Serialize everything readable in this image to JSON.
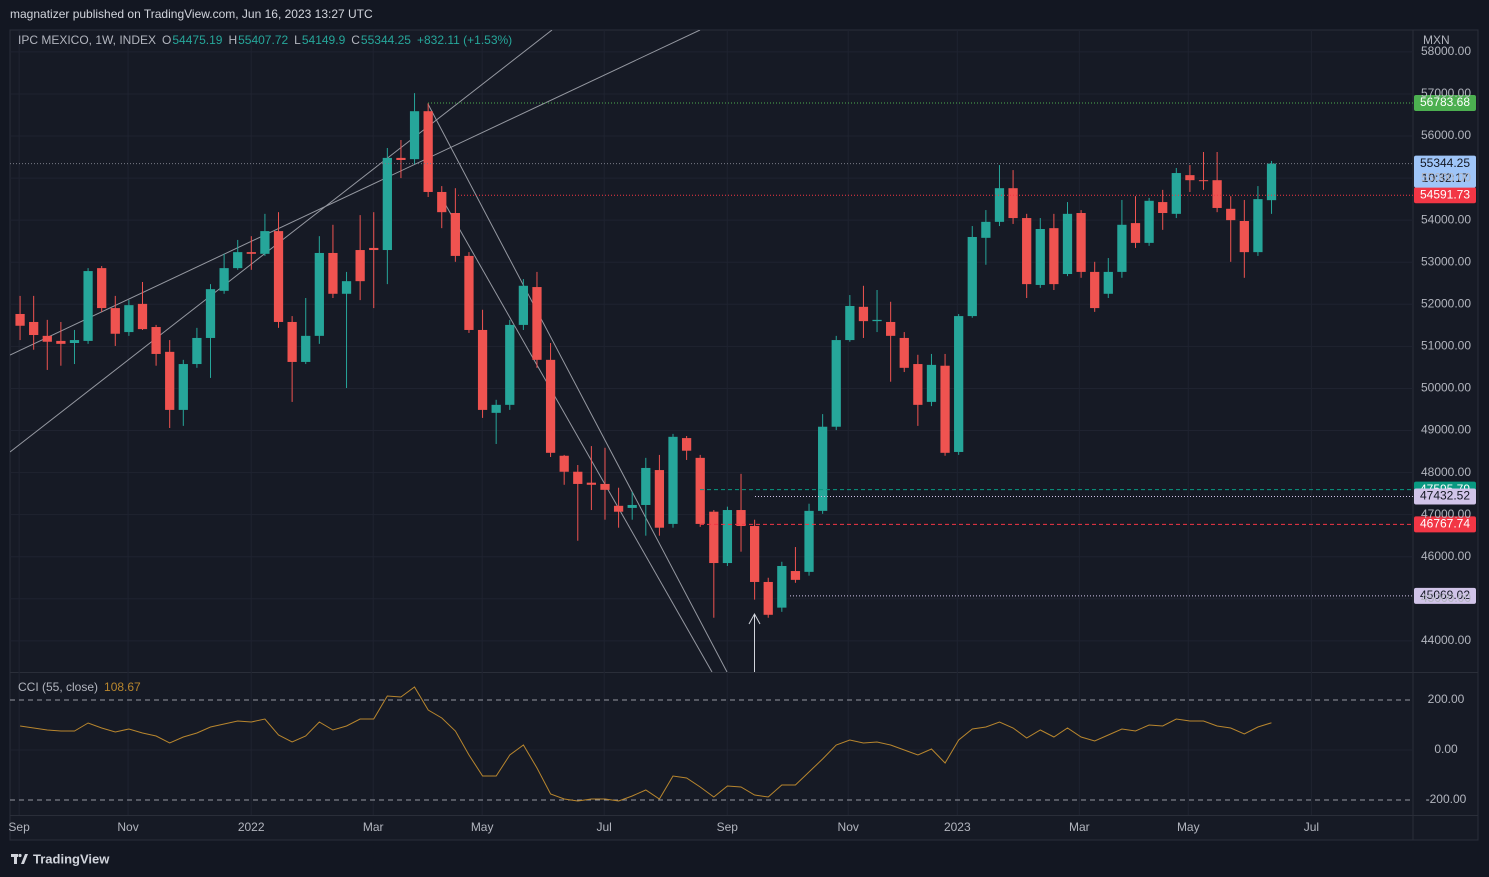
{
  "header": "magnatizer published on TradingView.com, Jun 16, 2023 13:27 UTC",
  "brand": "TradingView",
  "chart_data": [
    {
      "type": "candlestick",
      "title": "IPC MEXICO, 1W, INDEX",
      "ohlc_prefixes": [
        "O",
        "H",
        "L",
        "C"
      ],
      "change": "+832.11 (+1.53%)",
      "currency": "MXN",
      "up_color": "#26a69a",
      "down_color": "#ef5350",
      "open": [
        51770,
        51580,
        51250,
        51130,
        51080,
        51130,
        52860,
        51910,
        51340,
        52010,
        51460,
        50870,
        49490,
        50580,
        51200,
        52320,
        52860,
        53240,
        53200,
        53740,
        51580,
        50630,
        51250,
        53220,
        52250,
        53290,
        53340,
        53290,
        55480,
        55450,
        56590,
        54670,
        54170,
        53150,
        51390,
        49420,
        49610,
        51510,
        52410,
        50680,
        48400,
        48020,
        47760,
        47730,
        47210,
        47160,
        47230,
        48060,
        46780,
        48820,
        48350,
        47070,
        45850,
        47110,
        46730,
        45400,
        44790,
        45660,
        45640,
        47090,
        49090,
        51150,
        51940,
        51600,
        51580,
        51200,
        50580,
        49680,
        50540,
        48490,
        51720,
        53580,
        53960,
        54760,
        54050,
        52460,
        53810,
        52720,
        54170,
        52770,
        52250,
        52770,
        53930,
        53460,
        54430,
        54150,
        55070,
        54950,
        54950,
        54270,
        53980,
        53240,
        54475.19
      ],
      "high": [
        52200,
        52200,
        51630,
        51580,
        51390,
        52860,
        52910,
        52200,
        52100,
        52530,
        51510,
        51150,
        50680,
        51440,
        52480,
        53200,
        53530,
        53620,
        54150,
        54190,
        51720,
        52150,
        53620,
        53890,
        52770,
        54120,
        54190,
        55715,
        55905,
        57020,
        56780,
        54810,
        54760,
        53240,
        51870,
        49730,
        51630,
        52600,
        52770,
        51080,
        48420,
        48180,
        48630,
        48590,
        47640,
        47540,
        48350,
        48420,
        48920,
        48870,
        48420,
        47110,
        47190,
        47970,
        46880,
        45500,
        45880,
        46230,
        47260,
        49390,
        51250,
        52220,
        52440,
        52340,
        52060,
        51340,
        50800,
        50820,
        50820,
        51770,
        53860,
        54240,
        55310,
        55190,
        54150,
        54050,
        54150,
        54430,
        54240,
        53010,
        53100,
        54480,
        54570,
        54530,
        54720,
        55240,
        55310,
        55620,
        55620,
        54570,
        54480,
        54810,
        55407.72
      ],
      "low": [
        51150,
        50920,
        50440,
        50540,
        50580,
        51060,
        51820,
        51010,
        51250,
        51390,
        50540,
        49060,
        49110,
        50490,
        50250,
        52250,
        52820,
        52820,
        53150,
        51440,
        49680,
        50580,
        51060,
        52150,
        50010,
        52100,
        51910,
        52480,
        55000,
        55330,
        54550,
        53810,
        53010,
        51320,
        49300,
        48680,
        49490,
        51390,
        50490,
        48370,
        47710,
        46380,
        47110,
        46880,
        46690,
        46880,
        46500,
        46500,
        46690,
        48300,
        46710,
        44550,
        45780,
        46120,
        44980,
        44550,
        44690,
        45380,
        45550,
        47020,
        49010,
        51110,
        51200,
        51340,
        50160,
        50390,
        49110,
        49580,
        48400,
        48420,
        51680,
        52940,
        53860,
        53910,
        52150,
        52390,
        52340,
        52670,
        52630,
        51820,
        52150,
        52630,
        53340,
        53390,
        53770,
        54050,
        54670,
        54720,
        54190,
        53010,
        52630,
        53150,
        54149.9
      ],
      "close": [
        51490,
        51270,
        51110,
        51060,
        51150,
        52790,
        51910,
        51300,
        51980,
        51410,
        50820,
        49490,
        50580,
        51200,
        52360,
        52860,
        53240,
        53200,
        53740,
        51580,
        50630,
        51250,
        53220,
        52250,
        52550,
        52550,
        53290,
        55480,
        55430,
        56590,
        54670,
        54190,
        53150,
        51390,
        49490,
        49610,
        51510,
        52440,
        50680,
        48470,
        48020,
        47730,
        47710,
        47590,
        47070,
        47230,
        48110,
        46690,
        48850,
        48520,
        46780,
        45850,
        47110,
        46730,
        45400,
        44620,
        45780,
        45450,
        47090,
        49090,
        51150,
        51960,
        51600,
        51630,
        51250,
        50490,
        49610,
        50560,
        48470,
        51720,
        53600,
        53960,
        54760,
        54050,
        52480,
        53790,
        52480,
        54150,
        52770,
        51910,
        52770,
        53890,
        53460,
        54460,
        54170,
        55120,
        54950,
        54930,
        54290,
        54000,
        53240,
        54500,
        55344.25
      ],
      "last_price_color": "#9fc5f8",
      "countdown": "10:32:17",
      "price_lines": [
        {
          "value": 56783.68,
          "color": "#4caf50",
          "line": "dotted"
        },
        {
          "value": 54591.73,
          "color": "#f23645",
          "line": "dotted"
        },
        {
          "value": 47595.79,
          "color": "#089981",
          "line": "dashed"
        },
        {
          "value": 47432.52,
          "color": "#d1c4e9",
          "line": "dotted"
        },
        {
          "value": 46767.74,
          "color": "#f23645",
          "line": "dashed"
        },
        {
          "value": 45069.02,
          "color": "#d1c4e9",
          "line": "dotted"
        }
      ],
      "xlim": [
        -0.74,
        102.4
      ],
      "xticks": [
        {
          "value": -0.07,
          "label": "Sep"
        },
        {
          "value": 7.94,
          "label": "Nov"
        },
        {
          "value": 16.99,
          "label": "2022"
        },
        {
          "value": 25.96,
          "label": "Mar"
        },
        {
          "value": 33.97,
          "label": "May"
        },
        {
          "value": 42.94,
          "label": "Jul"
        },
        {
          "value": 51.99,
          "label": "Sep"
        },
        {
          "value": 60.88,
          "label": "Nov"
        },
        {
          "value": 68.9,
          "label": "2023"
        },
        {
          "value": 77.87,
          "label": "Mar"
        },
        {
          "value": 85.88,
          "label": "May"
        },
        {
          "value": 94.93,
          "label": "Jul"
        }
      ],
      "ylim": [
        43260,
        58520
      ],
      "yticks": [
        {
          "value": 58000,
          "label": "58000.00"
        },
        {
          "value": 57000,
          "label": "57000.00"
        },
        {
          "value": 56000,
          "label": "56000.00"
        },
        {
          "value": 55000,
          "label": "55000.00"
        },
        {
          "value": 54000,
          "label": "54000.00"
        },
        {
          "value": 53000,
          "label": "53000.00"
        },
        {
          "value": 52000,
          "label": "52000.00"
        },
        {
          "value": 51000,
          "label": "51000.00"
        },
        {
          "value": 50000,
          "label": "50000.00"
        },
        {
          "value": 49000,
          "label": "49000.00"
        },
        {
          "value": 48000,
          "label": "48000.00"
        },
        {
          "value": 47000,
          "label": "47000.00"
        },
        {
          "value": 46000,
          "label": "46000.00"
        },
        {
          "value": 45000,
          "label": "45000.00"
        },
        {
          "value": 44000,
          "label": "44000.00"
        }
      ],
      "grid": true
    },
    {
      "type": "line",
      "title": "CCI (55, close)",
      "color": "#b8862e",
      "values": [
        96,
        88,
        80,
        76,
        76,
        108,
        88,
        72,
        84,
        68,
        56,
        28,
        52,
        68,
        92,
        104,
        116,
        112,
        124,
        60,
        32,
        56,
        112,
        80,
        96,
        124,
        124,
        216,
        212,
        252,
        160,
        128,
        76,
        -20,
        -104,
        -104,
        -20,
        20,
        -72,
        -176,
        -196,
        -204,
        -196,
        -196,
        -204,
        -184,
        -160,
        -196,
        -104,
        -112,
        -148,
        -188,
        -144,
        -148,
        -180,
        -188,
        -140,
        -140,
        -88,
        -36,
        20,
        40,
        28,
        32,
        20,
        0,
        -20,
        4,
        -52,
        40,
        84,
        92,
        112,
        88,
        48,
        80,
        52,
        88,
        52,
        36,
        60,
        84,
        76,
        100,
        96,
        124,
        116,
        116,
        96,
        88,
        64,
        92,
        108.67
      ],
      "ylim": [
        -260,
        308
      ],
      "yticks": [
        {
          "value": 200,
          "label": "200.00"
        },
        {
          "value": 0,
          "label": "0.00"
        },
        {
          "value": -200,
          "label": "-200.00"
        }
      ]
    }
  ]
}
